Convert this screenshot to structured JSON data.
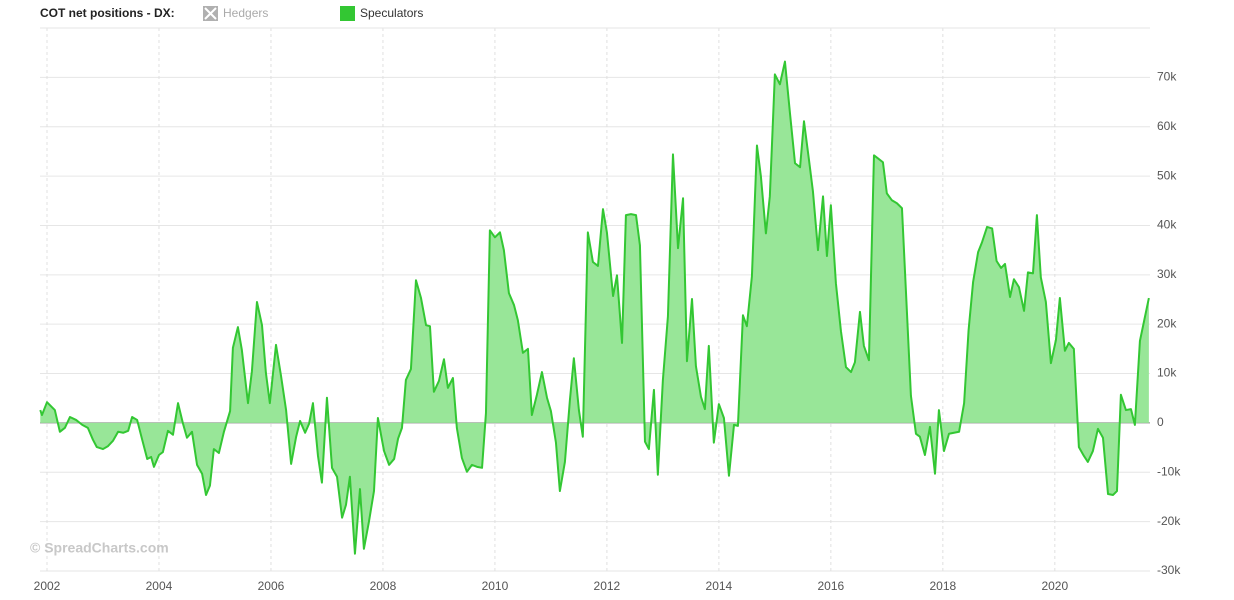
{
  "chart_data": {
    "type": "area",
    "title": "COT net positions - DX:",
    "watermark": "© SpreadCharts.com",
    "hidden_series": [
      {
        "name": "Hedgers",
        "color": "#b0b0b0"
      }
    ],
    "x": [
      2001.88,
      2001.91,
      2002.0,
      2002.14,
      2002.23,
      2002.32,
      2002.41,
      2002.52,
      2002.63,
      2002.73,
      2002.82,
      2002.89,
      2003.0,
      2003.09,
      2003.18,
      2003.27,
      2003.36,
      2003.45,
      2003.52,
      2003.61,
      2003.7,
      2003.79,
      2003.86,
      2003.91,
      2004.0,
      2004.07,
      2004.16,
      2004.25,
      2004.34,
      2004.43,
      2004.5,
      2004.59,
      2004.68,
      2004.77,
      2004.84,
      2004.91,
      2004.98,
      2005.07,
      2005.16,
      2005.27,
      2005.32,
      2005.41,
      2005.48,
      2005.59,
      2005.66,
      2005.75,
      2005.84,
      2005.91,
      2005.98,
      2006.09,
      2006.18,
      2006.27,
      2006.36,
      2006.45,
      2006.52,
      2006.61,
      2006.68,
      2006.75,
      2006.84,
      2006.91,
      2007.0,
      2007.09,
      2007.18,
      2007.27,
      2007.34,
      2007.41,
      2007.5,
      2007.59,
      2007.66,
      2007.75,
      2007.84,
      2007.91,
      2008.02,
      2008.11,
      2008.2,
      2008.27,
      2008.34,
      2008.41,
      2008.5,
      2008.59,
      2008.68,
      2008.77,
      2008.84,
      2008.91,
      2009.0,
      2009.09,
      2009.16,
      2009.25,
      2009.32,
      2009.41,
      2009.5,
      2009.59,
      2009.68,
      2009.77,
      2009.84,
      2009.91,
      2010.0,
      2010.09,
      2010.16,
      2010.25,
      2010.34,
      2010.41,
      2010.5,
      2010.59,
      2010.66,
      2010.75,
      2010.84,
      2010.93,
      2011.0,
      2011.09,
      2011.16,
      2011.25,
      2011.34,
      2011.41,
      2011.5,
      2011.57,
      2011.66,
      2011.75,
      2011.84,
      2011.93,
      2012.0,
      2012.11,
      2012.18,
      2012.27,
      2012.34,
      2012.43,
      2012.52,
      2012.59,
      2012.68,
      2012.75,
      2012.84,
      2012.91,
      2013.0,
      2013.09,
      2013.18,
      2013.27,
      2013.36,
      2013.43,
      2013.52,
      2013.59,
      2013.68,
      2013.75,
      2013.82,
      2013.91,
      2014.0,
      2014.09,
      2014.18,
      2014.27,
      2014.34,
      2014.43,
      2014.5,
      2014.59,
      2014.68,
      2014.75,
      2014.84,
      2014.91,
      2015.0,
      2015.09,
      2015.18,
      2015.27,
      2015.36,
      2015.45,
      2015.52,
      2015.61,
      2015.68,
      2015.77,
      2015.86,
      2015.93,
      2016.0,
      2016.09,
      2016.18,
      2016.27,
      2016.36,
      2016.43,
      2016.52,
      2016.59,
      2016.68,
      2016.77,
      2016.84,
      2016.93,
      2017.0,
      2017.09,
      2017.18,
      2017.27,
      2017.34,
      2017.43,
      2017.52,
      2017.59,
      2017.68,
      2017.77,
      2017.86,
      2017.93,
      2018.02,
      2018.11,
      2018.2,
      2018.29,
      2018.38,
      2018.46,
      2018.54,
      2018.63,
      2018.7,
      2018.79,
      2018.88,
      2018.96,
      2019.04,
      2019.11,
      2019.2,
      2019.27,
      2019.36,
      2019.45,
      2019.52,
      2019.61,
      2019.68,
      2019.75,
      2019.84,
      2019.93,
      2020.02,
      2020.09,
      2020.18,
      2020.25,
      2020.34,
      2020.43,
      2020.52,
      2020.59,
      2020.68,
      2020.77,
      2020.86,
      2020.95,
      2021.04,
      2021.11,
      2021.18,
      2021.27,
      2021.36,
      2021.43,
      2021.52,
      2021.68
    ],
    "series": [
      {
        "name": "Speculators",
        "color": "#33c733",
        "fill": "#98e698",
        "values": [
          2600,
          1600,
          4200,
          2600,
          -1800,
          -1000,
          1200,
          600,
          -400,
          -1000,
          -3400,
          -4900,
          -5300,
          -4700,
          -3600,
          -1800,
          -2000,
          -1600,
          1200,
          600,
          -3400,
          -7300,
          -6900,
          -8900,
          -6500,
          -5900,
          -1600,
          -2400,
          4000,
          -200,
          -3000,
          -1800,
          -8500,
          -10300,
          -14600,
          -12700,
          -5300,
          -6100,
          -1800,
          2400,
          15200,
          19400,
          14800,
          4000,
          10500,
          24500,
          19800,
          10100,
          4000,
          15800,
          9500,
          2600,
          -8300,
          -2800,
          400,
          -2000,
          -200,
          4000,
          -6700,
          -12100,
          5100,
          -9100,
          -10900,
          -19200,
          -16600,
          -10900,
          -26500,
          -13400,
          -25500,
          -20000,
          -13800,
          1000,
          -5700,
          -8500,
          -7300,
          -3200,
          -1000,
          8700,
          10900,
          28900,
          25300,
          19800,
          19600,
          6300,
          8500,
          12900,
          7100,
          9100,
          -1000,
          -7100,
          -9900,
          -8500,
          -8900,
          -9100,
          2000,
          39000,
          37600,
          38600,
          35000,
          26300,
          23900,
          20800,
          14200,
          15000,
          1600,
          5700,
          10300,
          5100,
          2400,
          -4000,
          -13800,
          -7900,
          4700,
          13100,
          2600,
          -2800,
          38600,
          32600,
          31800,
          43300,
          38600,
          25700,
          29900,
          16200,
          42100,
          42300,
          42100,
          36000,
          -3800,
          -5300,
          6700,
          -10500,
          8700,
          21600,
          54400,
          35400,
          45500,
          12500,
          25100,
          11500,
          5300,
          2800,
          15600,
          -4000,
          3800,
          1000,
          -10700,
          -400,
          -600,
          21800,
          19600,
          29700,
          56200,
          50000,
          38400,
          45900,
          70600,
          68600,
          73200,
          62700,
          52600,
          51800,
          61100,
          53200,
          46900,
          35000,
          45900,
          33800,
          44100,
          28300,
          18600,
          11300,
          10300,
          12300,
          22500,
          15600,
          12700,
          54200,
          53600,
          52800,
          46500,
          45100,
          44500,
          43500,
          26900,
          5500,
          -2200,
          -2800,
          -6500,
          -800,
          -10300,
          2600,
          -5700,
          -2200,
          -2000,
          -1800,
          4000,
          18800,
          28500,
          34600,
          36600,
          39700,
          39400,
          32800,
          31400,
          32200,
          25500,
          29100,
          27500,
          22700,
          30500,
          30300,
          42100,
          29500,
          24500,
          12100,
          16800,
          25300,
          14600,
          16200,
          15000,
          -4900,
          -6700,
          -7900,
          -5700,
          -1200,
          -3000,
          -14400,
          -14600,
          -13800,
          5700,
          2600,
          2800,
          -400,
          16600,
          25300
        ]
      }
    ],
    "xlim": [
      2001.875,
      2021.7
    ],
    "xticks": [
      2002,
      2004,
      2006,
      2008,
      2010,
      2012,
      2014,
      2016,
      2018,
      2020
    ],
    "ylim": [
      -30000,
      80000
    ],
    "yticks": [
      {
        "value": -30000,
        "label": "-30k"
      },
      {
        "value": -20000,
        "label": "-20k"
      },
      {
        "value": -10000,
        "label": "-10k"
      },
      0,
      {
        "value": 10000,
        "label": "10k"
      },
      {
        "value": 20000,
        "label": "20k"
      },
      {
        "value": 30000,
        "label": "30k"
      },
      {
        "value": 40000,
        "label": "40k"
      },
      {
        "value": 50000,
        "label": "50k"
      },
      {
        "value": 60000,
        "label": "60k"
      },
      {
        "value": 70000,
        "label": "70k"
      }
    ],
    "y_axis_side": "right",
    "grid": true
  }
}
